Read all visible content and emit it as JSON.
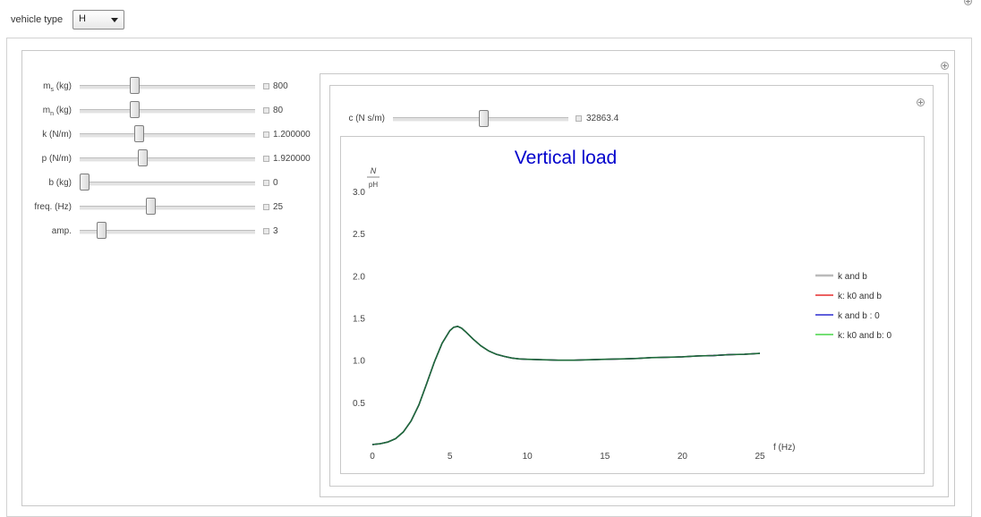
{
  "top": {
    "vehicle_type_label": "vehicle type",
    "vehicle_type_value": "H"
  },
  "left_sliders": [
    {
      "label": "m",
      "sub": "s",
      "unit": " (kg)",
      "value": "800",
      "fraction": 0.3
    },
    {
      "label": "m",
      "sub": "n",
      "unit": " (kg)",
      "value": "80",
      "fraction": 0.3
    },
    {
      "label": "k (N/m)",
      "sub": "",
      "unit": "",
      "value": "1.200000",
      "fraction": 0.33
    },
    {
      "label": "p (N/m)",
      "sub": "",
      "unit": "",
      "value": "1.920000",
      "fraction": 0.35
    },
    {
      "label": "b (kg)",
      "sub": "",
      "unit": "",
      "value": "0",
      "fraction": 0.0
    },
    {
      "label": "freq. (Hz)",
      "sub": "",
      "unit": "",
      "value": "25",
      "fraction": 0.4
    },
    {
      "label": "amp.",
      "sub": "",
      "unit": "",
      "value": "3",
      "fraction": 0.1
    }
  ],
  "c_slider": {
    "label": "c (N s/m)",
    "value": "32863.4",
    "fraction": 0.52
  },
  "chart_data": {
    "type": "line",
    "title": "Vertical load",
    "xlabel": "f (Hz)",
    "ylabel_numerator": "N",
    "ylabel_denominator": "pH",
    "xlim": [
      0,
      25
    ],
    "ylim": [
      0,
      3.0
    ],
    "xticks": [
      "0",
      "5",
      "10",
      "15",
      "20",
      "25"
    ],
    "yticks": [
      "0.5",
      "1.0",
      "1.5",
      "2.0",
      "2.5",
      "3.0"
    ],
    "grid": false,
    "legend_position": "right",
    "x": [
      0,
      0.5,
      1,
      1.5,
      2,
      2.5,
      3,
      3.5,
      4,
      4.5,
      5,
      5.25,
      5.5,
      5.75,
      6,
      6.5,
      7,
      7.5,
      8,
      8.5,
      9,
      9.5,
      10,
      11,
      12,
      13,
      14,
      15,
      16,
      17,
      18,
      19,
      20,
      21,
      22,
      23,
      24,
      25
    ],
    "series": [
      {
        "name": "k and b",
        "color": "#d8d8d8",
        "values": [
          0.0,
          0.01,
          0.03,
          0.07,
          0.15,
          0.28,
          0.47,
          0.72,
          0.98,
          1.2,
          1.35,
          1.39,
          1.4,
          1.38,
          1.34,
          1.25,
          1.17,
          1.11,
          1.07,
          1.045,
          1.025,
          1.015,
          1.01,
          1.005,
          1.0,
          1.0,
          1.005,
          1.01,
          1.015,
          1.02,
          1.03,
          1.035,
          1.04,
          1.05,
          1.055,
          1.065,
          1.07,
          1.08
        ]
      },
      {
        "name": "k: k0 and b",
        "color": "#e00000",
        "values": [
          0.0,
          0.01,
          0.03,
          0.07,
          0.15,
          0.28,
          0.47,
          0.72,
          0.98,
          1.2,
          1.35,
          1.39,
          1.4,
          1.38,
          1.34,
          1.25,
          1.17,
          1.11,
          1.07,
          1.045,
          1.025,
          1.015,
          1.01,
          1.005,
          1.0,
          1.0,
          1.005,
          1.01,
          1.015,
          1.02,
          1.03,
          1.035,
          1.04,
          1.05,
          1.055,
          1.065,
          1.07,
          1.08
        ]
      },
      {
        "name": "k and b : 0",
        "color": "#0000c8",
        "values": [
          0.0,
          0.01,
          0.03,
          0.07,
          0.15,
          0.28,
          0.47,
          0.72,
          0.98,
          1.2,
          1.35,
          1.39,
          1.4,
          1.38,
          1.34,
          1.25,
          1.17,
          1.11,
          1.07,
          1.045,
          1.025,
          1.015,
          1.01,
          1.005,
          1.0,
          1.0,
          1.005,
          1.01,
          1.015,
          1.02,
          1.03,
          1.035,
          1.04,
          1.05,
          1.055,
          1.065,
          1.07,
          1.08
        ]
      },
      {
        "name": "k: k0 and b: 0",
        "color": "#22cc22",
        "values": [
          0.0,
          0.01,
          0.03,
          0.07,
          0.15,
          0.28,
          0.47,
          0.72,
          0.98,
          1.2,
          1.35,
          1.39,
          1.4,
          1.38,
          1.34,
          1.25,
          1.17,
          1.11,
          1.07,
          1.045,
          1.025,
          1.015,
          1.01,
          1.005,
          1.0,
          1.0,
          1.005,
          1.01,
          1.015,
          1.02,
          1.03,
          1.035,
          1.04,
          1.05,
          1.055,
          1.065,
          1.07,
          1.08
        ]
      }
    ],
    "overlap_color": "#1e6b3a",
    "title_color": "#0000cc"
  }
}
